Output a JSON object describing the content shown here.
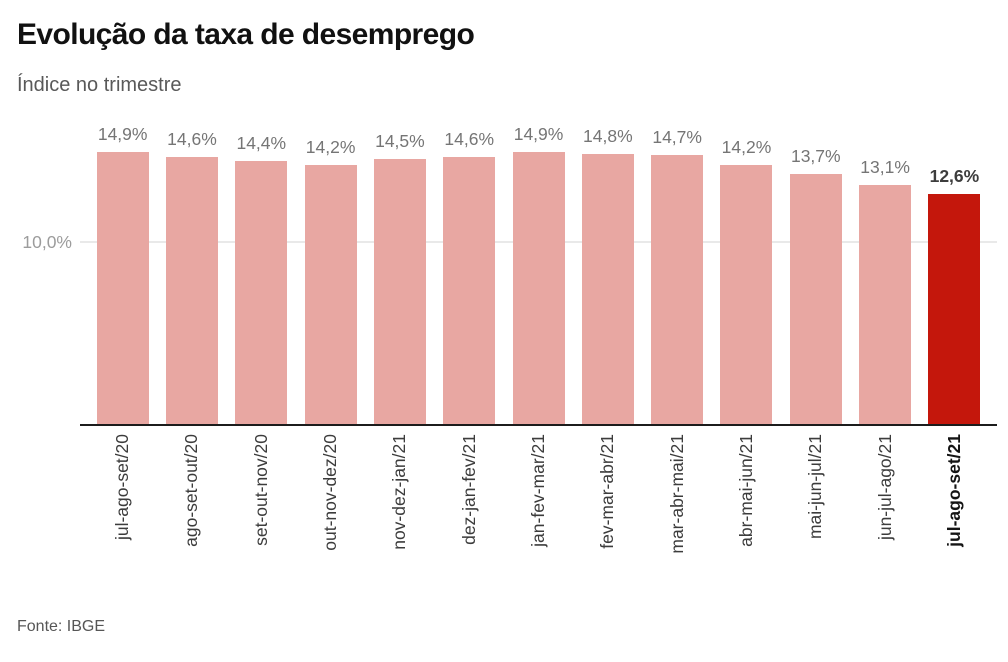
{
  "header": {
    "title": "Evolução da taxa de desemprego",
    "subtitle": "Índice no trimestre"
  },
  "footer": {
    "source": "Fonte: IBGE"
  },
  "chart_data": {
    "type": "bar",
    "title": "Evolução da taxa de desemprego",
    "subtitle": "Índice no trimestre",
    "categories": [
      "jul-ago-set/20",
      "ago-set-out/20",
      "set-out-nov/20",
      "out-nov-dez/20",
      "nov-dez-jan/21",
      "dez-jan-fev/21",
      "jan-fev-mar/21",
      "fev-mar-abr/21",
      "mar-abr-mai/21",
      "abr-mai-jun/21",
      "mai-jun-jul/21",
      "jun-jul-ago/21",
      "jul-ago-set/21"
    ],
    "values": [
      14.9,
      14.6,
      14.4,
      14.2,
      14.5,
      14.6,
      14.9,
      14.8,
      14.7,
      14.2,
      13.7,
      13.1,
      12.6
    ],
    "value_labels": [
      "14,9%",
      "14,6%",
      "14,4%",
      "14,2%",
      "14,5%",
      "14,6%",
      "14,9%",
      "14,8%",
      "14,7%",
      "14,2%",
      "13,7%",
      "13,1%",
      "12,6%"
    ],
    "highlight_index": 12,
    "xlabel": "",
    "ylabel": "",
    "y_axis": {
      "tick_label": "10,0%",
      "tick_value": 10.0,
      "ylim": [
        0,
        15.5
      ],
      "grid": "single horizontal gridline at 10,0%"
    },
    "legend": "none",
    "colors": {
      "bar": "#e8a7a2",
      "highlight": "#c4170c",
      "value_label": "#757575",
      "highlight_value_label": "#3d3d3d",
      "gridline": "#e9e9e9",
      "axis_line": "#1c1c1c"
    },
    "source": "Fonte: IBGE"
  }
}
